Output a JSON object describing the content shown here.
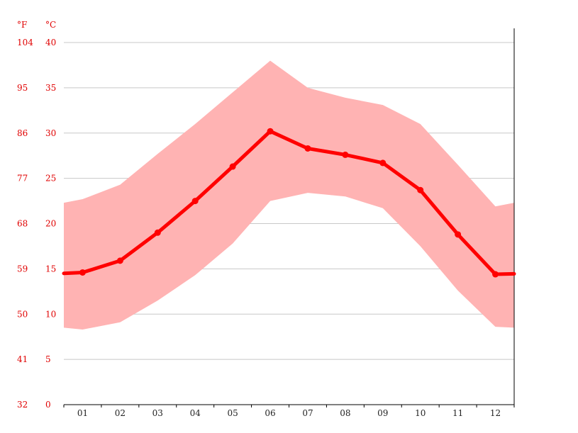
{
  "chart_data": {
    "type": "line",
    "categories": [
      "01",
      "02",
      "03",
      "04",
      "05",
      "06",
      "07",
      "08",
      "09",
      "10",
      "11",
      "12"
    ],
    "series": [
      {
        "values": [
          14.6,
          15.9,
          19.0,
          22.5,
          26.3,
          30.2,
          28.3,
          27.6,
          26.7,
          23.7,
          18.8,
          14.4
        ],
        "color": "#ff0000"
      }
    ],
    "band": {
      "max": [
        22.7,
        24.3,
        27.7,
        31.0,
        34.5,
        38.0,
        35.0,
        33.9,
        33.1,
        31.0,
        26.5,
        21.9
      ],
      "min": [
        8.3,
        9.1,
        11.5,
        14.3,
        17.8,
        22.5,
        23.4,
        23.0,
        21.7,
        17.5,
        12.6,
        8.6
      ],
      "color": "#ffb3b3"
    },
    "unit_f": "°F",
    "unit_c": "°C",
    "y_ticks_c": [
      "40",
      "35",
      "30",
      "25",
      "20",
      "15",
      "10",
      "5",
      "0"
    ],
    "y_ticks_f": [
      "104",
      "95",
      "86",
      "77",
      "68",
      "59",
      "50",
      "41",
      "32"
    ],
    "ylim": [
      0,
      40
    ],
    "grid": true
  }
}
